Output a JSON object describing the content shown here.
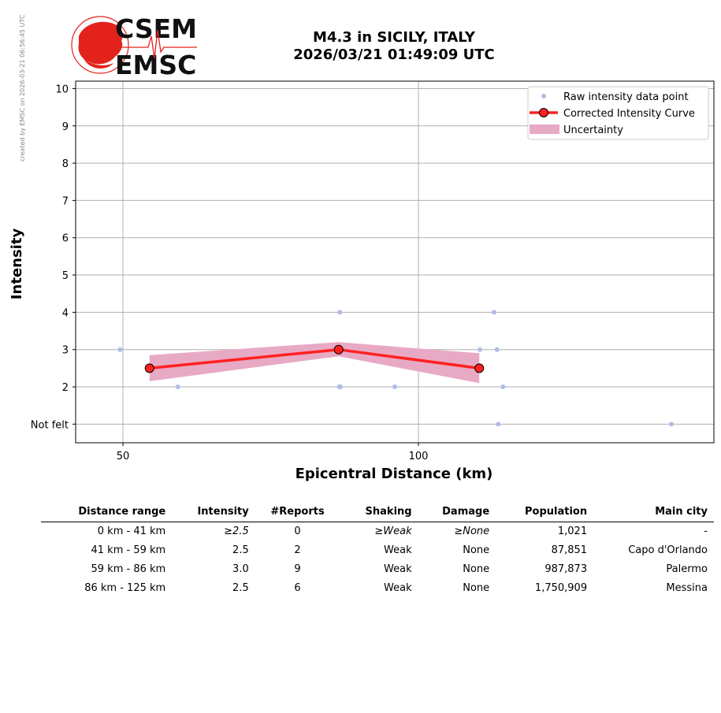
{
  "credit": "created by EMSC on 2026-03-21 06:56:45 UTC",
  "logo": {
    "top_text": "CSEM",
    "bottom_text": "EMSC",
    "color": "#e3221b"
  },
  "title_line1": "M4.3 in SICILY, ITALY",
  "title_line2": "2026/03/21 01:49:09 UTC",
  "chart_data": {
    "type": "scatter",
    "xlabel": "Epicentral Distance (km)",
    "ylabel": "Intensity",
    "xlim": [
      42,
      150
    ],
    "ylim": [
      0.5,
      10.2
    ],
    "xticks": [
      50,
      100
    ],
    "yticks": [
      1,
      2,
      3,
      4,
      5,
      6,
      7,
      8,
      9,
      10
    ],
    "ytick_labels": [
      "Not felt",
      "2",
      "3",
      "4",
      "5",
      "6",
      "7",
      "8",
      "9",
      "10"
    ],
    "grid": true,
    "legend_position": "top-right",
    "legend": [
      "Raw intensity data point",
      "Corrected Intensity Curve",
      "Uncertainty"
    ],
    "colors": {
      "raw": "#aebde6",
      "curve": "#ff2020",
      "marker": "#ff2020",
      "uncertainty": "#e8a9c4"
    },
    "raw_points": [
      {
        "x": 49.5,
        "y": 3
      },
      {
        "x": 59.3,
        "y": 2
      },
      {
        "x": 86.7,
        "y": 4
      },
      {
        "x": 86.6,
        "y": 2
      },
      {
        "x": 86.8,
        "y": 2
      },
      {
        "x": 96.0,
        "y": 2
      },
      {
        "x": 110.4,
        "y": 3
      },
      {
        "x": 112.8,
        "y": 4
      },
      {
        "x": 113.3,
        "y": 3
      },
      {
        "x": 114.3,
        "y": 2
      },
      {
        "x": 113.5,
        "y": 1
      },
      {
        "x": 142.8,
        "y": 1
      }
    ],
    "curve": [
      {
        "x": 54.5,
        "y": 2.5
      },
      {
        "x": 86.5,
        "y": 3.0
      },
      {
        "x": 110.3,
        "y": 2.5
      }
    ],
    "uncertainty": [
      {
        "x": 54.5,
        "low": 2.15,
        "high": 2.85
      },
      {
        "x": 86.5,
        "low": 2.82,
        "high": 3.2
      },
      {
        "x": 110.3,
        "low": 2.1,
        "high": 2.9
      }
    ]
  },
  "table": {
    "headers": [
      "Distance range",
      "Intensity",
      "#Reports",
      "Shaking",
      "Damage",
      "Population",
      "Main city"
    ],
    "rows": [
      [
        "0 km -   41 km",
        "≥2.5",
        "0",
        "≥Weak",
        "≥None",
        "1,021",
        "-"
      ],
      [
        "41 km -   59 km",
        "2.5",
        "2",
        "Weak",
        "None",
        "87,851",
        "Capo d'Orlando"
      ],
      [
        "59 km -   86 km",
        "3.0",
        "9",
        "Weak",
        "None",
        "987,873",
        "Palermo"
      ],
      [
        "86 km -  125 km",
        "2.5",
        "6",
        "Weak",
        "None",
        "1,750,909",
        "Messina"
      ]
    ]
  }
}
